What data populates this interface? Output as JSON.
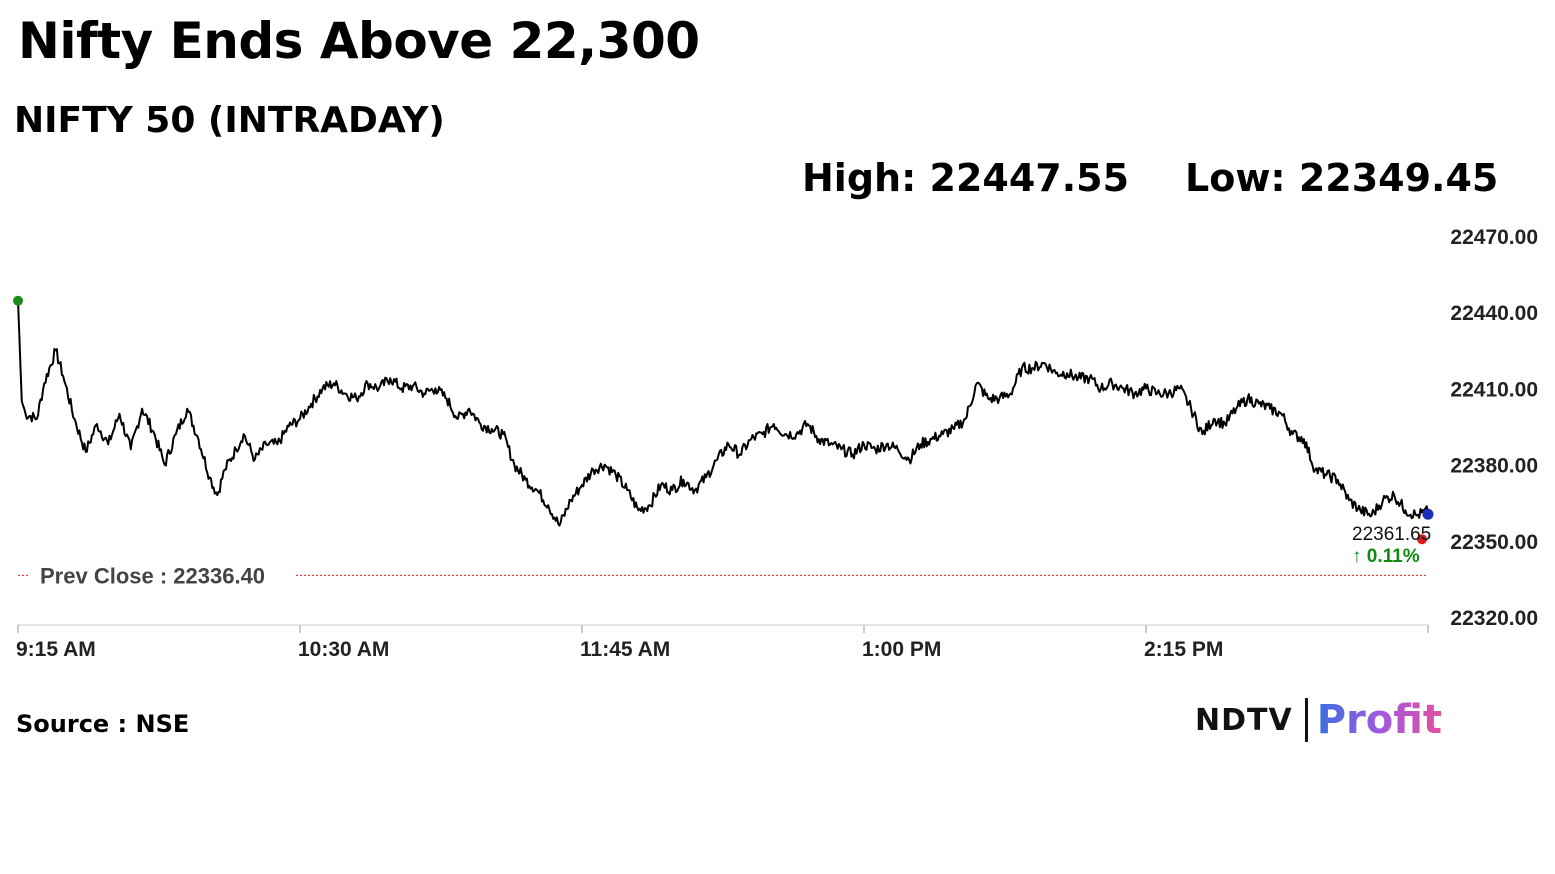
{
  "headline": "Nifty Ends Above 22,300",
  "subtitle": "NIFTY 50 (INTRADAY)",
  "high_label": "High: 22447.55",
  "low_label": "Low: 22349.45",
  "source": "Source : NSE",
  "logo": {
    "part1": "NDTV",
    "part2": "Profit"
  },
  "colors": {
    "line": "#000000",
    "open_dot": "#1a8a1a",
    "last_dot": "#e01b1b",
    "live_dot": "#1b2fb8",
    "prev_close": "#e02020",
    "change": "#118a11",
    "grid": "#dddddd",
    "logo_gradient": [
      "#3b6fe0",
      "#a05ae0",
      "#e04fa0"
    ]
  },
  "chart_data": {
    "type": "line",
    "title": "NIFTY 50 (INTRADAY)",
    "ylim": [
      22320,
      22470
    ],
    "yticks": [
      "22470.00",
      "22440.00",
      "22410.00",
      "22380.00",
      "22350.00",
      "22320.00"
    ],
    "xticks": [
      "9:15 AM",
      "10:30 AM",
      "11:45 AM",
      "1:00 PM",
      "2:15 PM"
    ],
    "xrange_minutes": [
      555,
      930
    ],
    "prev_close": {
      "value": 22336.4,
      "label": "Prev Close : 22336.40"
    },
    "last_value": {
      "value": 22361.65,
      "label": "22361.65",
      "change_label": "↑ 0.11%"
    },
    "series": [
      {
        "points": [
          [
            555,
            22444.5
          ],
          [
            556,
            22405
          ],
          [
            557,
            22400
          ],
          [
            560,
            22398
          ],
          [
            562,
            22412
          ],
          [
            565,
            22425
          ],
          [
            567,
            22415
          ],
          [
            570,
            22398
          ],
          [
            573,
            22385
          ],
          [
            576,
            22396
          ],
          [
            579,
            22388
          ],
          [
            582,
            22400
          ],
          [
            585,
            22386
          ],
          [
            588,
            22402
          ],
          [
            591,
            22393
          ],
          [
            594,
            22380
          ],
          [
            597,
            22392
          ],
          [
            600,
            22402
          ],
          [
            603,
            22390
          ],
          [
            606,
            22375
          ],
          [
            608,
            22368
          ],
          [
            610,
            22378
          ],
          [
            613,
            22386
          ],
          [
            615,
            22392
          ],
          [
            618,
            22382
          ],
          [
            621,
            22388
          ],
          [
            624,
            22388
          ],
          [
            627,
            22395
          ],
          [
            630,
            22398
          ],
          [
            633,
            22404
          ],
          [
            636,
            22410
          ],
          [
            639,
            22412
          ],
          [
            642,
            22408
          ],
          [
            645,
            22406
          ],
          [
            648,
            22412
          ],
          [
            651,
            22410
          ],
          [
            654,
            22414
          ],
          [
            657,
            22410
          ],
          [
            660,
            22411
          ],
          [
            663,
            22408
          ],
          [
            666,
            22410
          ],
          [
            669,
            22406
          ],
          [
            672,
            22398
          ],
          [
            675,
            22402
          ],
          [
            678,
            22396
          ],
          [
            681,
            22394
          ],
          [
            684,
            22392
          ],
          [
            687,
            22380
          ],
          [
            690,
            22374
          ],
          [
            693,
            22370
          ],
          [
            696,
            22364
          ],
          [
            699,
            22356
          ],
          [
            702,
            22366
          ],
          [
            705,
            22372
          ],
          [
            708,
            22378
          ],
          [
            711,
            22380
          ],
          [
            714,
            22376
          ],
          [
            717,
            22370
          ],
          [
            720,
            22362
          ],
          [
            723,
            22364
          ],
          [
            726,
            22372
          ],
          [
            729,
            22370
          ],
          [
            732,
            22374
          ],
          [
            735,
            22370
          ],
          [
            738,
            22375
          ],
          [
            741,
            22382
          ],
          [
            744,
            22388
          ],
          [
            747,
            22384
          ],
          [
            750,
            22390
          ],
          [
            753,
            22392
          ],
          [
            756,
            22396
          ],
          [
            759,
            22392
          ],
          [
            762,
            22392
          ],
          [
            765,
            22396
          ],
          [
            768,
            22390
          ],
          [
            771,
            22388
          ],
          [
            774,
            22386
          ],
          [
            777,
            22384
          ],
          [
            780,
            22388
          ],
          [
            783,
            22386
          ],
          [
            786,
            22388
          ],
          [
            789,
            22386
          ],
          [
            792,
            22382
          ],
          [
            795,
            22388
          ],
          [
            798,
            22390
          ],
          [
            801,
            22392
          ],
          [
            804,
            22394
          ],
          [
            807,
            22398
          ],
          [
            810,
            22412
          ],
          [
            813,
            22406
          ],
          [
            816,
            22406
          ],
          [
            819,
            22408
          ],
          [
            822,
            22418
          ],
          [
            825,
            22418
          ],
          [
            828,
            22420
          ],
          [
            831,
            22416
          ],
          [
            834,
            22416
          ],
          [
            837,
            22414
          ],
          [
            840,
            22414
          ],
          [
            843,
            22410
          ],
          [
            846,
            22412
          ],
          [
            849,
            22410
          ],
          [
            852,
            22408
          ],
          [
            855,
            22410
          ],
          [
            858,
            22408
          ],
          [
            861,
            22408
          ],
          [
            864,
            22410
          ],
          [
            867,
            22402
          ],
          [
            870,
            22392
          ],
          [
            873,
            22398
          ],
          [
            876,
            22396
          ],
          [
            879,
            22402
          ],
          [
            882,
            22406
          ],
          [
            885,
            22404
          ],
          [
            888,
            22402
          ],
          [
            891,
            22400
          ],
          [
            894,
            22392
          ],
          [
            897,
            22390
          ],
          [
            900,
            22378
          ],
          [
            903,
            22376
          ],
          [
            906,
            22374
          ],
          [
            909,
            22366
          ],
          [
            912,
            22362
          ],
          [
            915,
            22360
          ],
          [
            918,
            22366
          ],
          [
            921,
            22368
          ],
          [
            924,
            22362
          ],
          [
            927,
            22360
          ],
          [
            930,
            22361.65
          ]
        ]
      }
    ]
  }
}
